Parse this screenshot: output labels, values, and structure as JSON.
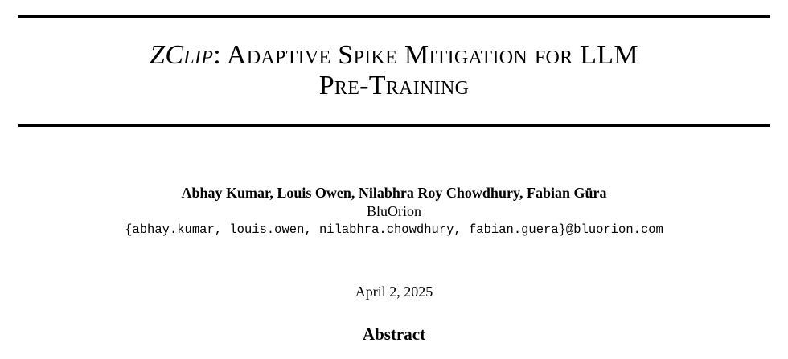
{
  "paper": {
    "title_method": "ZClip",
    "title_rest_line1": ": Adaptive Spike Mitigation for LLM",
    "title_line2": "Pre-Training",
    "authors": "Abhay Kumar, Louis Owen, Nilabhra Roy Chowdhury, Fabian Güra",
    "affiliation": "BluOrion",
    "emails": "{abhay.kumar, louis.owen, nilabhra.chowdhury, fabian.guera}@bluorion.com",
    "date": "April 2, 2025",
    "abstract_heading": "Abstract"
  }
}
